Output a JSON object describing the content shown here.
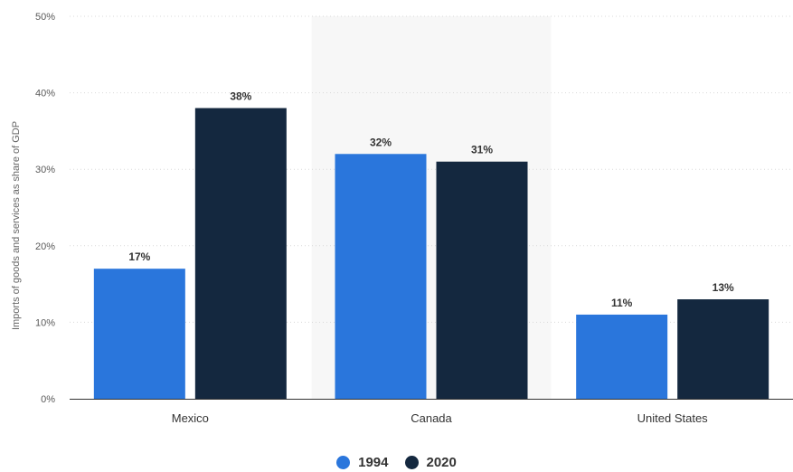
{
  "chart_data": {
    "type": "bar",
    "categories": [
      "Mexico",
      "Canada",
      "United States"
    ],
    "series": [
      {
        "name": "1994",
        "values": [
          17,
          32,
          11
        ],
        "labels": [
          "17%",
          "32%",
          "11%"
        ],
        "color": "#2a76dc"
      },
      {
        "name": "2020",
        "values": [
          38,
          31,
          13
        ],
        "labels": [
          "38%",
          "31%",
          "13%"
        ],
        "color": "#14283f"
      }
    ],
    "xlabel": "",
    "ylabel": "Imports of goods and services as share of GDP",
    "ylim": [
      0,
      50
    ],
    "yticks": [
      0,
      10,
      20,
      30,
      40,
      50
    ],
    "ytick_labels": [
      "0%",
      "10%",
      "20%",
      "30%",
      "40%",
      "50%"
    ],
    "grid": true,
    "legend_position": "bottom-center",
    "highlight_category": "Canada",
    "highlight_color": "#f7f7f7",
    "axis_color": "#333333",
    "grid_color": "#d9d9d9"
  }
}
